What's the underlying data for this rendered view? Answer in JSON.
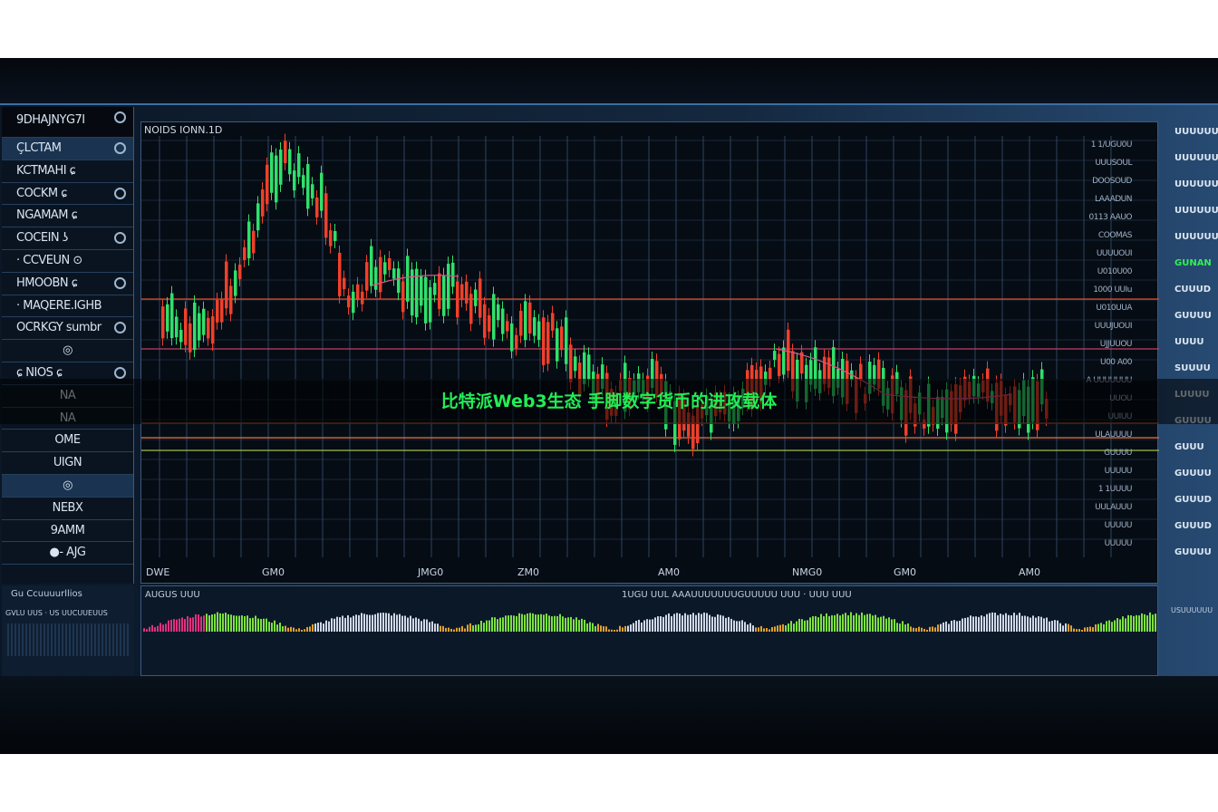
{
  "sidebar": {
    "header": "9DHAJNYG7I",
    "items": [
      {
        "label": "ÇLCTAM",
        "hl": true
      },
      {
        "label": "KCTMAHI ɕ"
      },
      {
        "label": "COCKM ɕ"
      },
      {
        "label": "NGAMAM ɕ"
      },
      {
        "label": "COCEIN ʖ"
      },
      {
        "label": "· CCVEUN ⊙"
      },
      {
        "label": "HMOOBN ɕ"
      },
      {
        "label": "· MAQERE.IGHB"
      },
      {
        "label": "OCRKGY sumbr"
      },
      {
        "label": "◎",
        "center": true
      },
      {
        "label": "ɕ  NIOS ɕ"
      },
      {
        "label": "NA",
        "center": true
      },
      {
        "label": "NA",
        "center": true
      },
      {
        "label": "OME",
        "center": true
      },
      {
        "label": "UIGN",
        "center": true
      },
      {
        "label": "◎",
        "center": true,
        "hl": true
      },
      {
        "label": "NEBX",
        "center": true
      },
      {
        "label": "9AMM",
        "center": true
      },
      {
        "label": "●- AJG",
        "center": true
      },
      {
        "label": "",
        "center": true
      }
    ]
  },
  "chart": {
    "title": "NOIDS IONN.1D",
    "y_labels": [
      "1 1/UGU0U",
      "UUUSOUL",
      "DOOSOUD",
      "LAAADUN",
      "0113 AAUO",
      "COOMAS",
      "UUUUOUI",
      "U010U00",
      "1000 UUIu",
      "U010UUA",
      "UUUJUOUI",
      "UJJUUOU",
      "U00 A00",
      "A UUUUUUU",
      "UUOU",
      "UUIUU",
      "ULAUUUU",
      "GUUUU",
      "UUUUU",
      "1 1UUUU",
      "UULAUUU",
      "UUUUU",
      "UUUUU"
    ],
    "x_labels": [
      "DWE",
      "GM0",
      "JMG0",
      "ZM0",
      "AM0",
      "NMG0",
      "GM0",
      "AM0"
    ],
    "colors": {
      "up": "#2fe06a",
      "down": "#f0402a",
      "grid": "#2c4560"
    }
  },
  "right_labels": [
    "UUUUUU",
    "UUUUUU",
    "UUUUUU",
    "UUUUUU",
    "UUUUUU",
    "GUNAN",
    "CUUUD",
    "GUUUU",
    "UUUU",
    "SUUUU",
    "LUUUU",
    "GUUUU",
    "GUUU",
    "GUUUU",
    "GUUUD",
    "GUUUD",
    "GUUUU"
  ],
  "bottom": {
    "left_label": "Gu  Ccuuuurllios",
    "left_sub": "GVLU UUS · US UUCUUEUUS",
    "labels": [
      "AUGUS UUU",
      "1UGU  UUL  AAAUUUUUUUGUUUUU UUU  ·  UUU UUU",
      "USUUUUUU"
    ]
  },
  "overlay": "比特派Web3生态 手脚数字货币的进攻载体"
}
